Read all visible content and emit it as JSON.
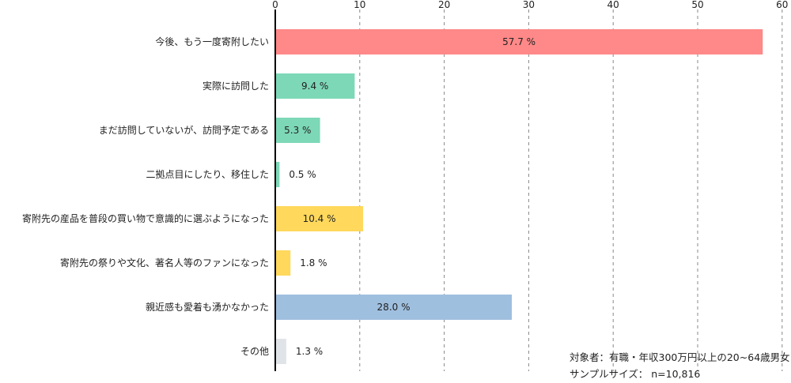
{
  "chart_data": {
    "type": "bar",
    "orientation": "horizontal",
    "categories": [
      "今後、もう一度寄附したい",
      "実際に訪問した",
      "まだ訪問していないが、訪問予定である",
      "二拠点目にしたり、移住した",
      "寄附先の産品を普段の買い物で意識的に選ぶようになった",
      "寄附先の祭りや文化、著名人等のファンになった",
      "親近感も愛着も湧かなかった",
      "その他"
    ],
    "values": [
      57.7,
      9.4,
      5.3,
      0.5,
      10.4,
      1.8,
      28.0,
      1.3
    ],
    "value_labels": [
      "57.7 %",
      "9.4 %",
      "5.3 %",
      "0.5 %",
      "10.4 %",
      "1.8 %",
      "28.0 %",
      "1.3 %"
    ],
    "colors": [
      "#ff8888",
      "#7dd8b8",
      "#7dd8b8",
      "#7dd8b8",
      "#ffd85c",
      "#ffd85c",
      "#9fbfdf",
      "#e0e4e8"
    ],
    "xlim": [
      0,
      60
    ],
    "xticks": [
      0,
      10,
      20,
      30,
      40,
      50,
      60
    ],
    "xtick_labels": [
      "0",
      "10",
      "20",
      "30",
      "40",
      "50",
      "60"
    ],
    "grid": true,
    "axis_position": "top",
    "title": "",
    "xlabel": "",
    "ylabel": ""
  },
  "notes": {
    "target": "対象者：有職・年収300万円以上の20~64歳男女",
    "sample_size": "サンプルサイズ： n=10,816"
  }
}
